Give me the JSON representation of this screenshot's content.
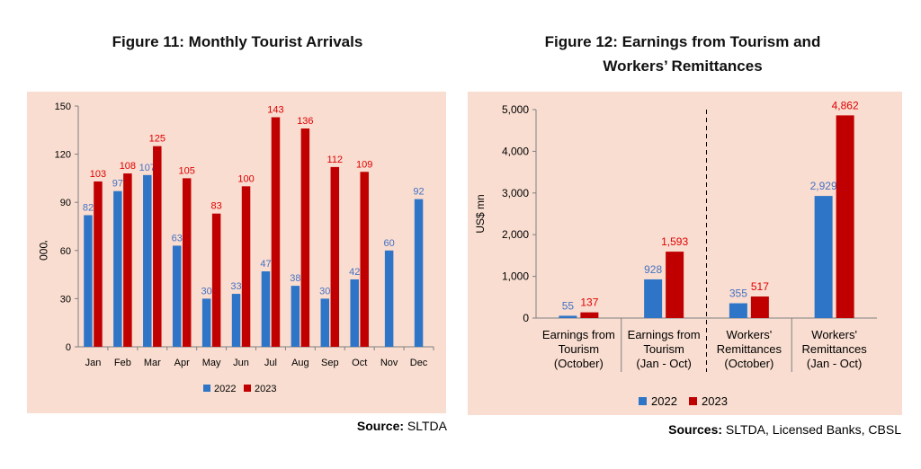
{
  "colors": {
    "series_2022": "#2E75C7",
    "series_2023": "#C00000",
    "label_2022": "#4472C4",
    "label_2023": "#E00000",
    "panel_bg": "#F9DDD0"
  },
  "figure11": {
    "title": "Figure 11: Monthly Tourist Arrivals",
    "source_label": "Source:",
    "source_value": " SLTDA"
  },
  "figure12": {
    "title": "Figure 12: Earnings from Tourism and\nWorkers’ Remittances",
    "source_label": "Sources:",
    "source_value": " SLTDA, Licensed Banks, CBSL"
  },
  "chart_data": [
    {
      "type": "bar",
      "title": "Figure 11: Monthly Tourist Arrivals",
      "ylabel": "'000",
      "xlabel": "",
      "ylim": [
        0,
        150
      ],
      "yticks": [
        "0",
        "30",
        "60",
        "90",
        "120",
        "150"
      ],
      "categories": [
        "Jan",
        "Feb",
        "Mar",
        "Apr",
        "May",
        "Jun",
        "Jul",
        "Aug",
        "Sep",
        "Oct",
        "Nov",
        "Dec"
      ],
      "series": [
        {
          "name": "2022",
          "values": [
            82,
            97,
            107,
            63,
            30,
            33,
            47,
            38,
            30,
            42,
            60,
            92
          ],
          "labels": [
            "82",
            "97",
            "107",
            "63",
            "30",
            "33",
            "47",
            "38",
            "30",
            "42",
            "60",
            "92"
          ]
        },
        {
          "name": "2023",
          "values": [
            103,
            108,
            125,
            105,
            83,
            100,
            143,
            136,
            112,
            109,
            null,
            null
          ],
          "labels": [
            "103",
            "108",
            "125",
            "105",
            "83",
            "100",
            "143",
            "136",
            "112",
            "109",
            "",
            ""
          ]
        }
      ],
      "legend": "bottom",
      "grid": false
    },
    {
      "type": "bar",
      "title": "Figure 12: Earnings from Tourism and Workers’ Remittances",
      "ylabel": "US$ mn",
      "xlabel": "",
      "ylim": [
        0,
        5000
      ],
      "yticks": [
        "0",
        "1,000",
        "2,000",
        "3,000",
        "4,000",
        "5,000"
      ],
      "categories": [
        [
          "Earnings from",
          "Tourism",
          "(October)"
        ],
        [
          "Earnings from",
          "Tourism",
          "(Jan - Oct)"
        ],
        [
          "Workers'",
          "Remittances",
          "(October)"
        ],
        [
          "Workers'",
          "Remittances",
          "(Jan - Oct)"
        ]
      ],
      "series": [
        {
          "name": "2022",
          "values": [
            55,
            928,
            355,
            2929
          ],
          "labels": [
            "55",
            "928",
            "355",
            "2,929"
          ]
        },
        {
          "name": "2023",
          "values": [
            137,
            1593,
            517,
            4862
          ],
          "labels": [
            "137",
            "1,593",
            "517",
            "4,862"
          ]
        }
      ],
      "legend": "bottom",
      "grid": false,
      "divider": "dashed line between category 2 and 3"
    }
  ]
}
